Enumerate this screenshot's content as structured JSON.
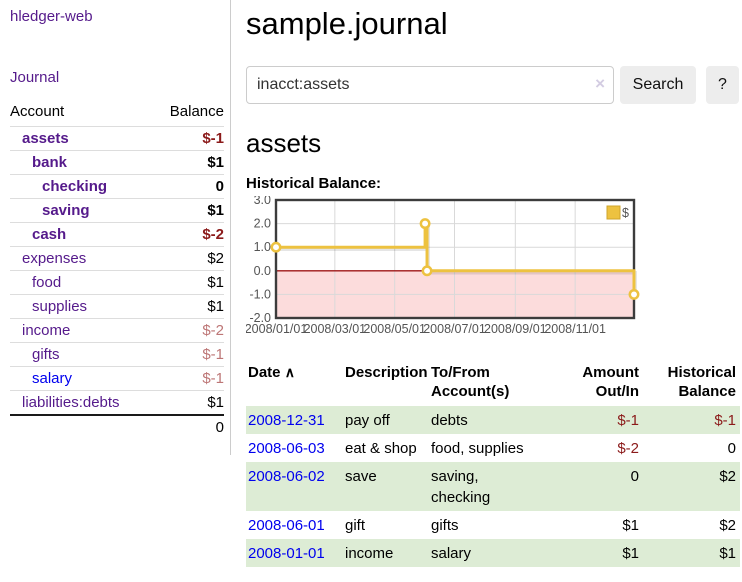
{
  "colors": {
    "purple_link": "#551a8b",
    "blue_link": "#0000ee",
    "neg_strong": "#8b1a1a",
    "neg_muted": "#bd7676",
    "row_green": "#ddecd5",
    "divider": "#cccccc"
  },
  "app": {
    "brand": "hledger-web"
  },
  "sidebar": {
    "journal_link": "Journal",
    "table": {
      "account_header": "Account",
      "balance_header": "Balance",
      "rows": [
        {
          "account": "assets",
          "indent": 1,
          "bold": true,
          "link": "purple",
          "balance": "$-1",
          "balance_style": "neg-strong"
        },
        {
          "account": "bank",
          "indent": 2,
          "bold": true,
          "link": "purple",
          "balance": "$1",
          "balance_style": "pos"
        },
        {
          "account": "checking",
          "indent": 3,
          "bold": true,
          "link": "purple",
          "balance": "0",
          "balance_style": "pos"
        },
        {
          "account": "saving",
          "indent": 3,
          "bold": true,
          "link": "purple",
          "balance": "$1",
          "balance_style": "pos"
        },
        {
          "account": "cash",
          "indent": 2,
          "bold": true,
          "link": "purple",
          "balance": "$-2",
          "balance_style": "neg-strong"
        },
        {
          "account": "expenses",
          "indent": 1,
          "bold": false,
          "link": "purple",
          "balance": "$2",
          "balance_style": "pos"
        },
        {
          "account": "food",
          "indent": 2,
          "bold": false,
          "link": "purple",
          "balance": "$1",
          "balance_style": "pos"
        },
        {
          "account": "supplies",
          "indent": 2,
          "bold": false,
          "link": "purple",
          "balance": "$1",
          "balance_style": "pos"
        },
        {
          "account": "income",
          "indent": 1,
          "bold": false,
          "link": "purple",
          "balance": "$-2",
          "balance_style": "neg-muted"
        },
        {
          "account": "gifts",
          "indent": 2,
          "bold": false,
          "link": "purple",
          "balance": "$-1",
          "balance_style": "neg-muted"
        },
        {
          "account": "salary",
          "indent": 2,
          "bold": false,
          "link": "blue",
          "balance": "$-1",
          "balance_style": "neg-muted"
        },
        {
          "account": "liabilities:debts",
          "indent": 1,
          "bold": false,
          "link": "purple",
          "balance": "$1",
          "balance_style": "pos"
        }
      ],
      "total": "0"
    }
  },
  "main": {
    "title": "sample.journal",
    "search": {
      "value": "inacct:assets",
      "clear_icon": "×",
      "button_label": "Search",
      "help_label": "?"
    },
    "account_heading": "assets",
    "chart_label": "Historical Balance:"
  },
  "chart_data": {
    "type": "line",
    "style": "step",
    "title": "Historical Balance",
    "series": [
      {
        "name": "$",
        "color": "#edc240",
        "points": [
          {
            "date": "2008-01-01",
            "value": 1.0
          },
          {
            "date": "2008-06-01",
            "value": 2.0
          },
          {
            "date": "2008-06-03",
            "value": 0.0
          },
          {
            "date": "2008-12-31",
            "value": -1.0
          }
        ]
      }
    ],
    "x_ticks": [
      "2008/01/01",
      "2008/03/01",
      "2008/05/01",
      "2008/07/01",
      "2008/09/01",
      "2008/11/01"
    ],
    "y_ticks": [
      3.0,
      2.0,
      1.0,
      0.0,
      -1.0,
      -2.0
    ],
    "ylim": [
      -2.0,
      3.0
    ],
    "grid": true,
    "negative_region_color": "#fcdcdc",
    "zero_line_color": "#9e1616",
    "legend": {
      "label": "$",
      "position": "top-right"
    }
  },
  "register": {
    "headers": {
      "date": "Date",
      "sort_indicator": "∧",
      "description": "Description",
      "tofrom": "To/From\nAccount(s)",
      "amount": "Amount\nOut/In",
      "balance": "Historical\nBalance"
    },
    "rows": [
      {
        "date": "2008-12-31",
        "description": "pay off",
        "accounts": "debts",
        "amount": "$-1",
        "amount_negative": true,
        "balance": "$-1",
        "balance_negative": true
      },
      {
        "date": "2008-06-03",
        "description": "eat & shop",
        "accounts": "food, supplies",
        "amount": "$-2",
        "amount_negative": true,
        "balance": "0",
        "balance_negative": false
      },
      {
        "date": "2008-06-02",
        "description": "save",
        "accounts": "saving,\nchecking",
        "amount": "0",
        "amount_negative": false,
        "balance": "$2",
        "balance_negative": false
      },
      {
        "date": "2008-06-01",
        "description": "gift",
        "accounts": "gifts",
        "amount": "$1",
        "amount_negative": false,
        "balance": "$2",
        "balance_negative": false
      },
      {
        "date": "2008-01-01",
        "description": "income",
        "accounts": "salary",
        "amount": "$1",
        "amount_negative": false,
        "balance": "$1",
        "balance_negative": false
      }
    ]
  }
}
